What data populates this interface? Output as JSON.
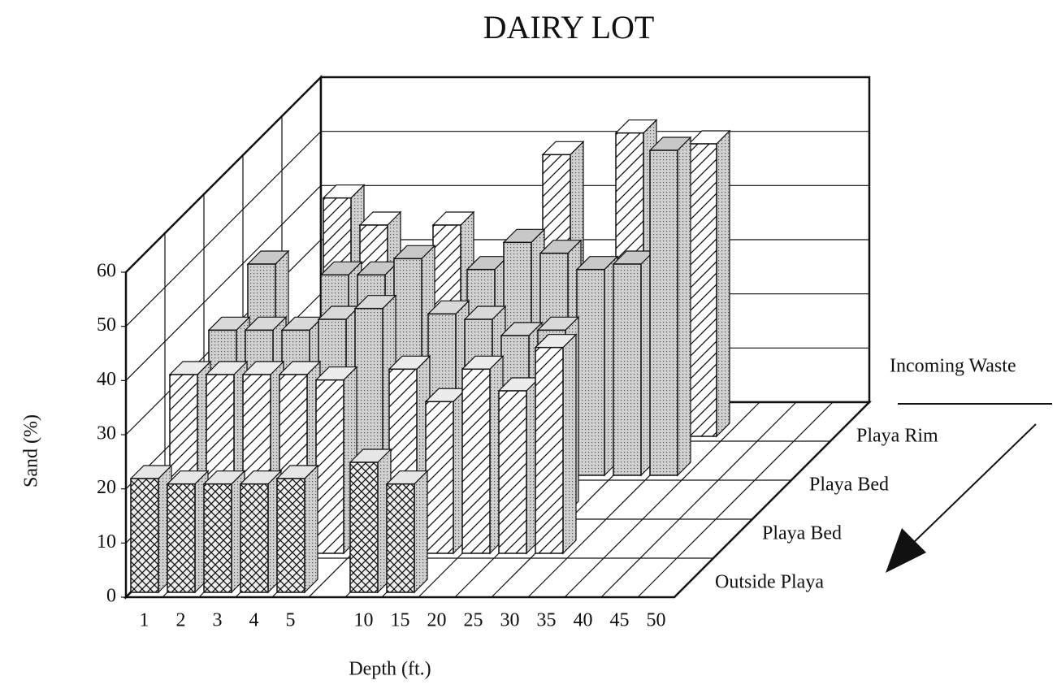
{
  "chart_data": {
    "type": "bar3d",
    "title": "DAIRY LOT",
    "y_label": "Sand (%)",
    "x_label": "Depth (ft.)",
    "categories": [
      "1",
      "2",
      "3",
      "4",
      "5",
      null,
      "10",
      "15",
      "20",
      "25",
      "30",
      "35",
      "40",
      "45",
      "50"
    ],
    "ylim": [
      0,
      60
    ],
    "yticks": [
      0,
      10,
      20,
      30,
      40,
      50,
      60
    ],
    "grid": true,
    "series": [
      {
        "name": "Outside Playa",
        "color": "#e6e6e6",
        "hatch": "cross",
        "values": [
          21,
          20,
          20,
          20,
          21,
          null,
          24,
          20,
          null,
          null,
          null,
          null,
          null,
          null,
          null
        ]
      },
      {
        "name": "Playa Bed",
        "color": "#ececec",
        "hatch": "diag",
        "values": [
          33,
          33,
          33,
          33,
          32,
          null,
          34,
          28,
          34,
          30,
          38,
          null,
          null,
          null,
          null
        ]
      },
      {
        "name": "Playa Bed",
        "color": "#d9d9d9",
        "hatch": "dots",
        "values": [
          34,
          34,
          34,
          36,
          38,
          null,
          37,
          36,
          33,
          34,
          null,
          null,
          null,
          null,
          null
        ]
      },
      {
        "name": "Playa Rim",
        "color": "#c8c8c8",
        "hatch": "dots",
        "values": [
          39,
          null,
          37,
          37,
          40,
          null,
          38,
          43,
          41,
          38,
          39,
          60,
          null,
          null,
          null
        ]
      },
      {
        "name": "Incoming Waste",
        "color": "#ffffff",
        "hatch": "diag",
        "values": [
          null,
          44,
          39,
          null,
          39,
          null,
          null,
          52,
          null,
          56,
          44,
          54,
          null,
          null,
          null
        ]
      }
    ]
  }
}
